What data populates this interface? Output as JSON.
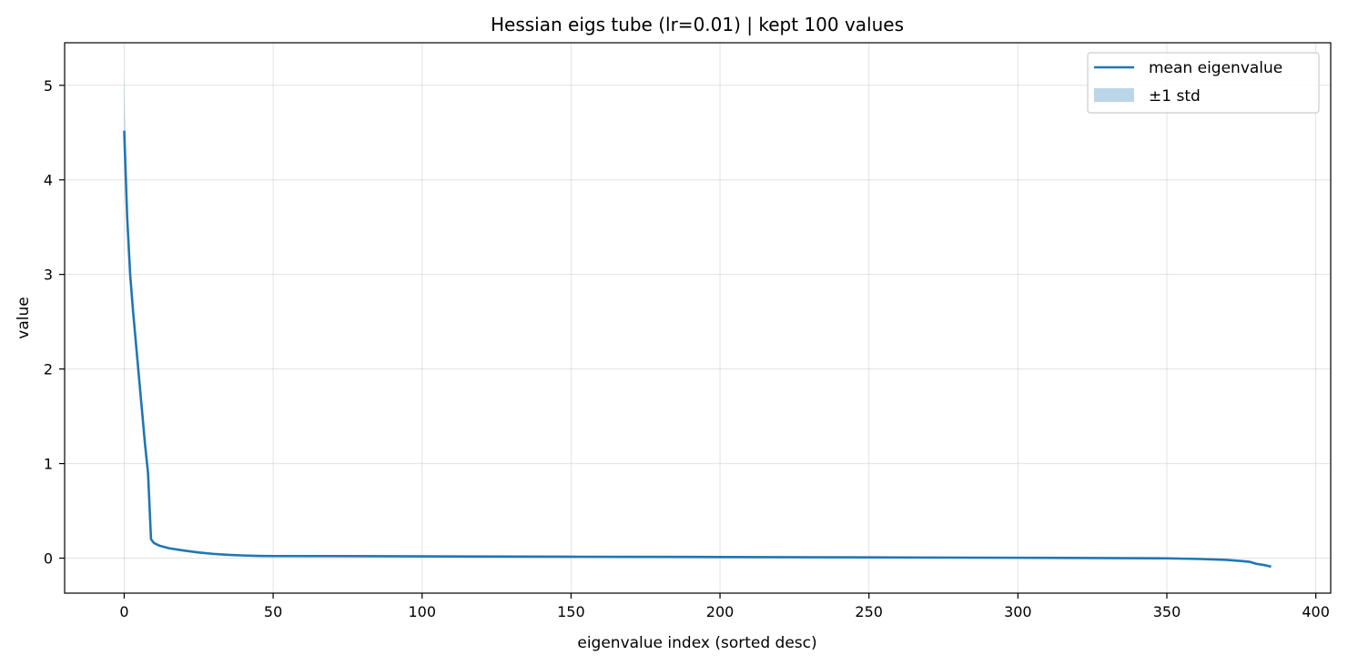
{
  "chart_data": {
    "type": "line",
    "title": "Hessian eigs tube (lr=0.01) | kept 100 values",
    "xlabel": "eigenvalue index (sorted desc)",
    "ylabel": "value",
    "xlim": [
      -20,
      405
    ],
    "ylim": [
      -0.37,
      5.45
    ],
    "xticks": [
      0,
      50,
      100,
      150,
      200,
      250,
      300,
      350,
      400
    ],
    "yticks": [
      0,
      1,
      2,
      3,
      4,
      5
    ],
    "grid": true,
    "legend_position": "upper right",
    "colors": {
      "line": "#1f77b4",
      "band": "#1f77b4"
    },
    "series": [
      {
        "name": "mean eigenvalue",
        "x": [
          0,
          1,
          2,
          3,
          4,
          5,
          6,
          7,
          8,
          9,
          10,
          12,
          15,
          20,
          25,
          30,
          35,
          40,
          45,
          50,
          75,
          100,
          150,
          200,
          250,
          300,
          350,
          360,
          370,
          375,
          378,
          380,
          383,
          385
        ],
        "y": [
          4.52,
          3.6,
          3.0,
          2.6,
          2.25,
          1.9,
          1.55,
          1.2,
          0.9,
          0.2,
          0.16,
          0.13,
          0.105,
          0.08,
          0.06,
          0.045,
          0.035,
          0.028,
          0.024,
          0.022,
          0.021,
          0.019,
          0.015,
          0.012,
          0.008,
          0.004,
          -0.002,
          -0.008,
          -0.018,
          -0.03,
          -0.04,
          -0.06,
          -0.075,
          -0.09
        ]
      },
      {
        "name": "±1 std",
        "x": [
          0,
          1,
          2,
          3,
          4,
          5,
          6,
          7,
          8,
          9,
          10,
          12,
          15,
          20,
          25,
          30,
          35,
          40,
          45,
          50,
          75,
          100,
          150,
          200,
          250,
          300,
          350,
          360,
          370,
          375,
          378,
          380,
          383,
          385
        ],
        "lower": [
          4.4,
          3.55,
          2.95,
          2.55,
          2.2,
          1.85,
          1.5,
          1.15,
          0.85,
          0.18,
          0.15,
          0.125,
          0.1,
          0.077,
          0.058,
          0.043,
          0.033,
          0.027,
          0.023,
          0.021,
          0.02,
          0.018,
          0.014,
          0.011,
          0.007,
          0.003,
          -0.004,
          -0.011,
          -0.022,
          -0.036,
          -0.048,
          -0.07,
          -0.085,
          -0.1
        ],
        "upper": [
          5.1,
          3.7,
          3.08,
          2.67,
          2.32,
          1.97,
          1.62,
          1.27,
          0.96,
          0.22,
          0.17,
          0.135,
          0.11,
          0.083,
          0.062,
          0.047,
          0.037,
          0.029,
          0.025,
          0.023,
          0.022,
          0.02,
          0.016,
          0.013,
          0.009,
          0.005,
          0.0,
          -0.005,
          -0.014,
          -0.024,
          -0.032,
          -0.05,
          -0.065,
          -0.08
        ]
      }
    ]
  }
}
